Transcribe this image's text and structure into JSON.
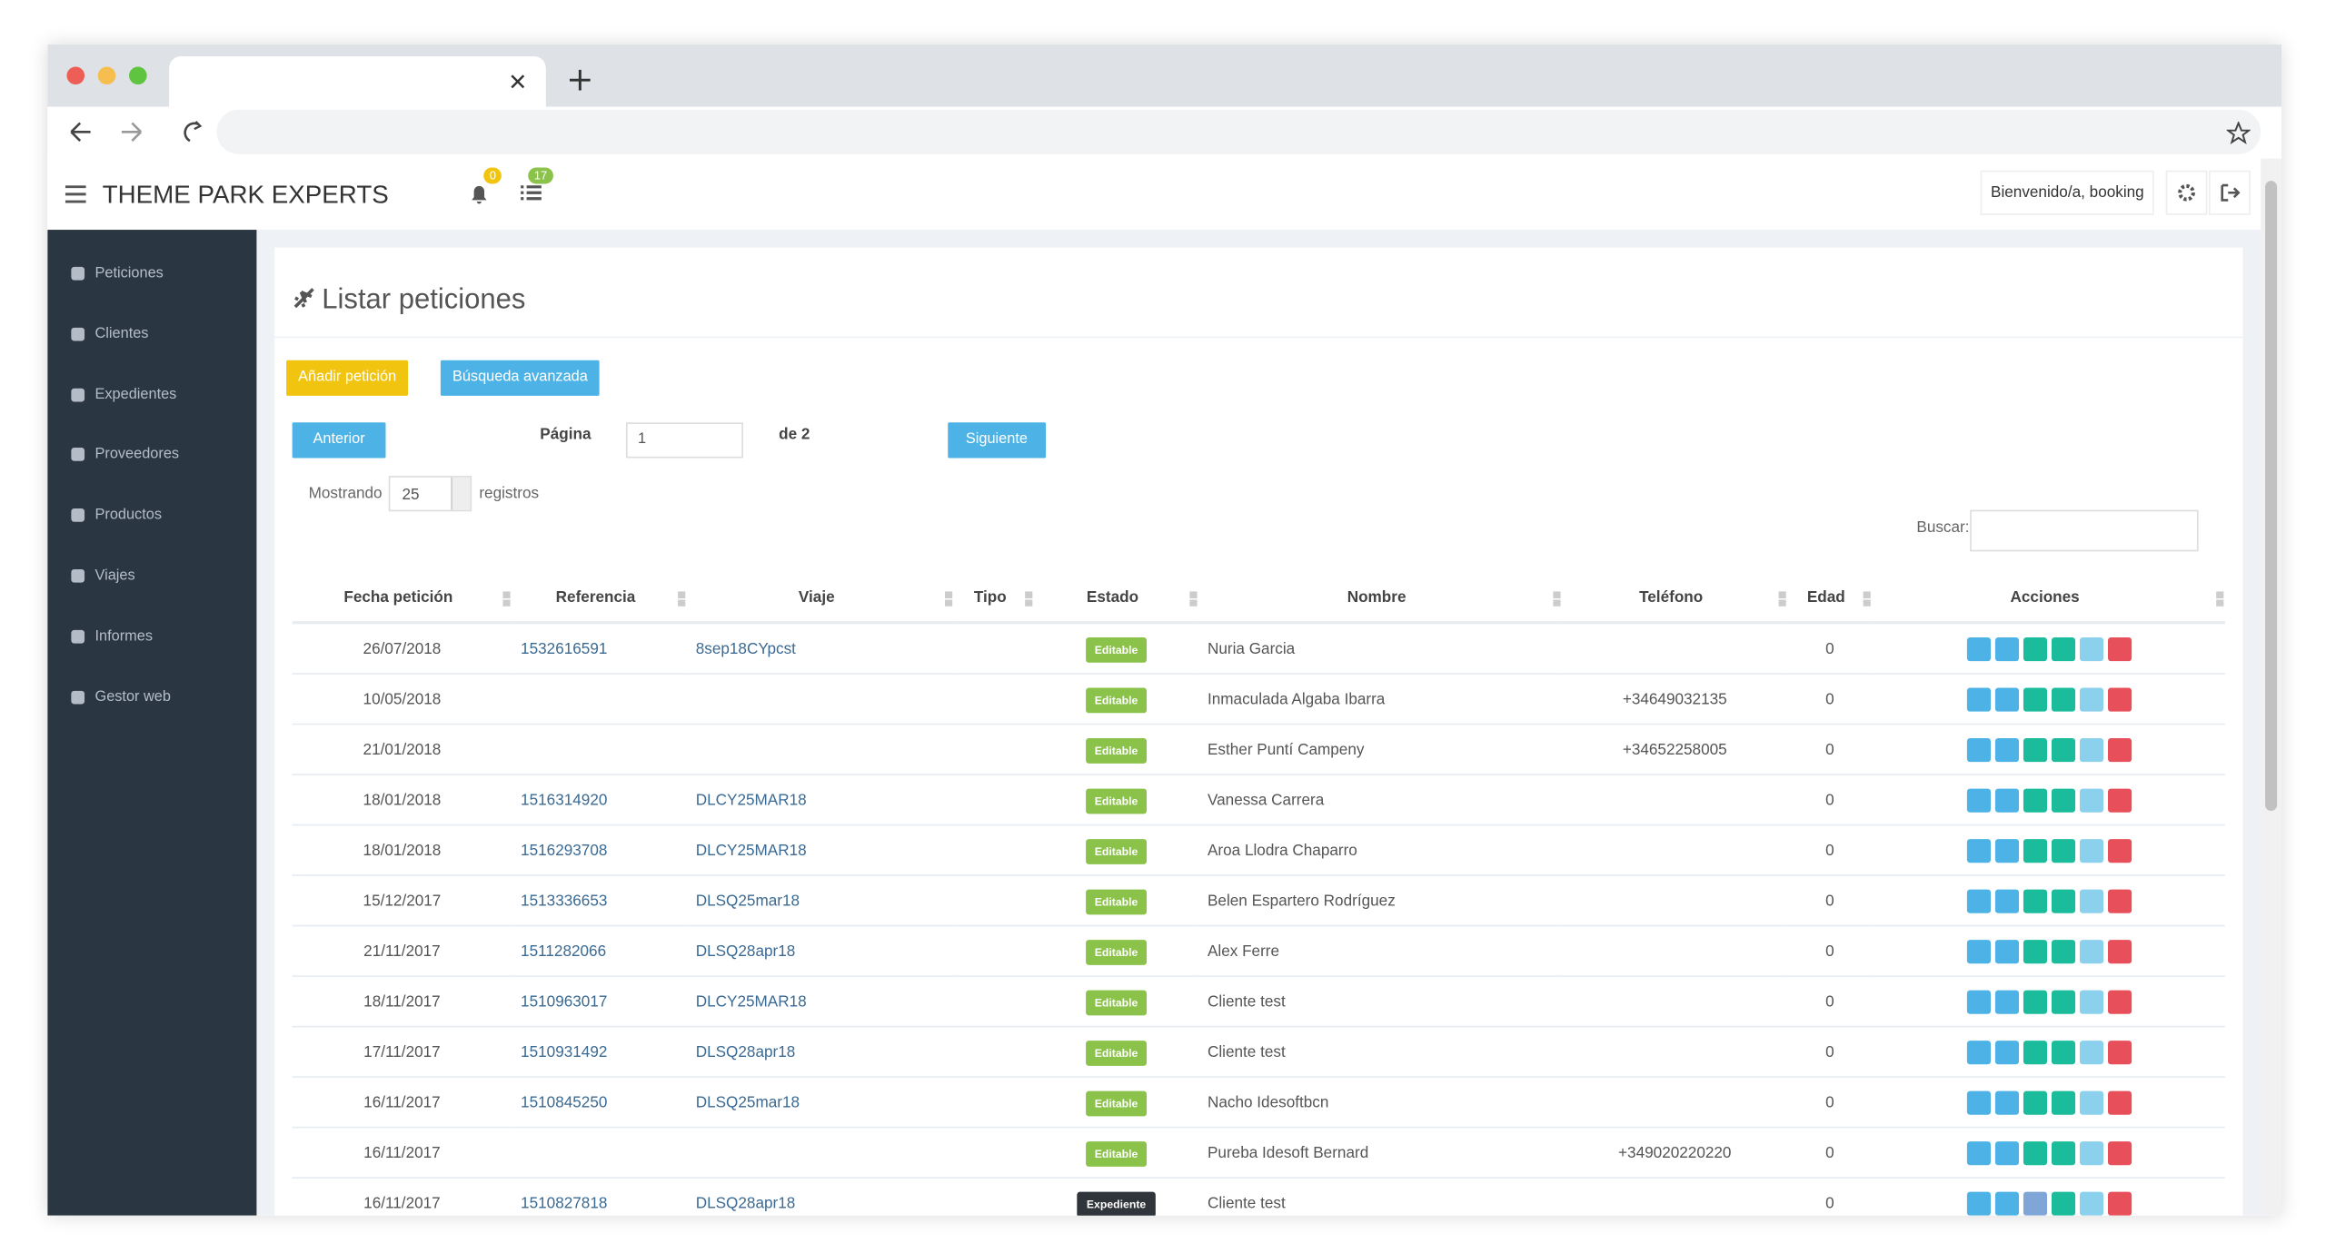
{
  "header": {
    "title": "THEME PARK EXPERTS",
    "notifications": "0",
    "tasks": "17",
    "welcome": "Bienvenido/a, booking"
  },
  "sidebar": {
    "items": [
      "Peticiones",
      "Clientes",
      "Expedientes",
      "Proveedores",
      "Productos",
      "Viajes",
      "Informes",
      "Gestor web"
    ]
  },
  "page": {
    "title": "Listar peticiones",
    "add_button": "Añadir petición",
    "search_button": "Búsqueda avanzada",
    "prev_button": "Anterior",
    "page_label": "Página",
    "page_input": "1",
    "page_total": "de 2",
    "next_button": "Siguiente",
    "showing_label": "Mostrando",
    "page_size": "25",
    "records_label": "registros",
    "search_label": "Buscar:"
  },
  "table": {
    "columns": [
      "Fecha petición",
      "Referencia",
      "Viaje",
      "Tipo",
      "Estado",
      "Nombre",
      "Teléfono",
      "Edad",
      "Acciones"
    ],
    "rows": [
      {
        "date": "26/07/2018",
        "reference": "1532616591",
        "trip": "8sep18CYpcst",
        "status": "Editable",
        "name": "Nuria Garcia",
        "age": "0"
      },
      {
        "date": "10/05/2018",
        "status": "Editable",
        "name": "Inmaculada Algaba Ibarra",
        "phone": "+34649032135",
        "age": "0"
      },
      {
        "date": "21/01/2018",
        "status": "Editable",
        "name": "Esther Puntí Campeny",
        "phone": "+34652258005",
        "age": "0"
      },
      {
        "date": "18/01/2018",
        "reference": "1516314920",
        "trip": "DLCY25MAR18",
        "status": "Editable",
        "name": "Vanessa Carrera",
        "age": "0"
      },
      {
        "date": "18/01/2018",
        "reference": "1516293708",
        "trip": "DLCY25MAR18",
        "status": "Editable",
        "name": "Aroa Llodra Chaparro",
        "age": "0"
      },
      {
        "date": "15/12/2017",
        "reference": "1513336653",
        "trip": "DLSQ25mar18",
        "status": "Editable",
        "name": "Belen Espartero Rodríguez",
        "age": "0"
      },
      {
        "date": "21/11/2017",
        "reference": "1511282066",
        "trip": "DLSQ28apr18",
        "status": "Editable",
        "name": "Alex Ferre",
        "age": "0"
      },
      {
        "date": "18/11/2017",
        "reference": "1510963017",
        "trip": "DLCY25MAR18",
        "status": "Editable",
        "name": "Cliente test",
        "age": "0"
      },
      {
        "date": "17/11/2017",
        "reference": "1510931492",
        "trip": "DLSQ28apr18",
        "status": "Editable",
        "name": "Cliente test",
        "age": "0"
      },
      {
        "date": "16/11/2017",
        "reference": "1510845250",
        "trip": "DLSQ25mar18",
        "status": "Editable",
        "name": "Nacho Idesoftbcn",
        "age": "0"
      },
      {
        "date": "16/11/2017",
        "status": "Editable",
        "name": "Pureba Idesoft Bernard",
        "phone": "+349020220220",
        "age": "0"
      },
      {
        "date": "16/11/2017",
        "reference": "1510827818",
        "trip": "DLSQ28apr18",
        "status": "Expediente",
        "name": "Cliente test",
        "age": "0"
      }
    ]
  }
}
